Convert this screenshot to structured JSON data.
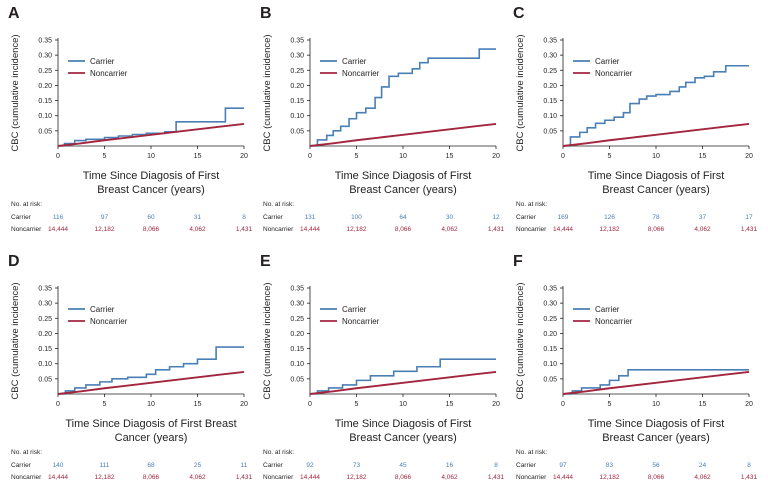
{
  "colors": {
    "carrier": "#4a7fb5",
    "noncarrier": "#a3263f",
    "axis": "#231f20"
  },
  "risk_table": {
    "title": "No. at risk:",
    "carrier_label": "Carrier",
    "noncarrier_label": "Noncarrier",
    "times": [
      "0",
      "5",
      "10",
      "15",
      "20"
    ]
  },
  "chart_data": [
    {
      "panel": "A",
      "type": "line",
      "xlabel": "Time Since Diagosis of First Breast Cancer (years)",
      "xlabel_lines": [
        "Time Since Diagosis of First",
        "Breast Cancer (years)"
      ],
      "ylabel": "CBC (cumulative incidence)",
      "xlim": [
        0,
        20
      ],
      "ylim": [
        0,
        0.35
      ],
      "xticks": [
        "0",
        "5",
        "10",
        "15",
        "20"
      ],
      "yticks": [
        "0.05",
        "0.10",
        "0.15",
        "0.20",
        "0.25",
        "0.30",
        "0.35"
      ],
      "legend": "top-left",
      "grid": false,
      "series": [
        {
          "name": "Carrier",
          "step": true,
          "x": [
            0,
            0.7,
            1.8,
            3,
            5,
            6.5,
            8,
            9.5,
            11.5,
            12.7,
            18,
            20
          ],
          "y": [
            0,
            0.008,
            0.018,
            0.022,
            0.028,
            0.033,
            0.038,
            0.042,
            0.047,
            0.08,
            0.125,
            0.125
          ]
        },
        {
          "name": "Noncarrier",
          "step": false,
          "x": [
            0,
            2.5,
            5,
            7.5,
            10,
            12.5,
            15,
            17.5,
            20
          ],
          "y": [
            0,
            0.009,
            0.019,
            0.028,
            0.037,
            0.046,
            0.055,
            0.064,
            0.073
          ]
        }
      ],
      "at_risk": {
        "carrier": [
          "116",
          "97",
          "60",
          "31",
          "8"
        ],
        "noncarrier": [
          "14,444",
          "12,182",
          "8,066",
          "4,062",
          "1,431"
        ]
      }
    },
    {
      "panel": "B",
      "type": "line",
      "xlabel": "Time Since Diagosis of First Breast Cancer (years)",
      "xlabel_lines": [
        "Time Since Diagosis of First",
        "Breast Cancer (years)"
      ],
      "ylabel": "CBC (cumulative incidence)",
      "xlim": [
        0,
        20
      ],
      "ylim": [
        0,
        0.35
      ],
      "xticks": [
        "0",
        "5",
        "10",
        "15",
        "20"
      ],
      "yticks": [
        "0.05",
        "0.10",
        "0.15",
        "0.20",
        "0.25",
        "0.30",
        "0.35"
      ],
      "legend": "top-left",
      "grid": false,
      "series": [
        {
          "name": "Carrier",
          "step": true,
          "x": [
            0,
            0.8,
            1.8,
            2.5,
            3.3,
            4.2,
            5,
            6,
            7,
            7.7,
            8.5,
            9.5,
            11,
            11.8,
            12.7,
            14.3,
            18.2,
            20
          ],
          "y": [
            0,
            0.02,
            0.035,
            0.05,
            0.065,
            0.09,
            0.11,
            0.125,
            0.16,
            0.195,
            0.23,
            0.24,
            0.255,
            0.275,
            0.29,
            0.29,
            0.32,
            0.32
          ]
        },
        {
          "name": "Noncarrier",
          "step": false,
          "x": [
            0,
            2.5,
            5,
            7.5,
            10,
            12.5,
            15,
            17.5,
            20
          ],
          "y": [
            0,
            0.009,
            0.019,
            0.028,
            0.037,
            0.046,
            0.055,
            0.064,
            0.073
          ]
        }
      ],
      "at_risk": {
        "carrier": [
          "131",
          "100",
          "64",
          "30",
          "12"
        ],
        "noncarrier": [
          "14,444",
          "12,182",
          "8,066",
          "4,062",
          "1,431"
        ]
      }
    },
    {
      "panel": "C",
      "type": "line",
      "xlabel": "Time Since Diagosis of First Breast Cancer (years)",
      "xlabel_lines": [
        "Time Since Diagosis of First",
        "Breast Cancer (years)"
      ],
      "ylabel": "CBC (cumulative incidence)",
      "xlim": [
        0,
        20
      ],
      "ylim": [
        0,
        0.35
      ],
      "xticks": [
        "0",
        "5",
        "10",
        "15",
        "20"
      ],
      "yticks": [
        "0.05",
        "0.10",
        "0.15",
        "0.20",
        "0.25",
        "0.30",
        "0.35"
      ],
      "legend": "top-left",
      "grid": false,
      "series": [
        {
          "name": "Carrier",
          "step": true,
          "x": [
            0,
            0.8,
            1.8,
            2.6,
            3.5,
            4.5,
            5.5,
            6.5,
            7.2,
            8.2,
            9,
            10,
            11.5,
            12.5,
            13.2,
            14.2,
            15.2,
            16.2,
            17.5,
            20
          ],
          "y": [
            0,
            0.03,
            0.045,
            0.06,
            0.075,
            0.085,
            0.095,
            0.11,
            0.14,
            0.155,
            0.165,
            0.17,
            0.18,
            0.195,
            0.21,
            0.225,
            0.23,
            0.245,
            0.265,
            0.265
          ]
        },
        {
          "name": "Noncarrier",
          "step": false,
          "x": [
            0,
            2.5,
            5,
            7.5,
            10,
            12.5,
            15,
            17.5,
            20
          ],
          "y": [
            0,
            0.009,
            0.019,
            0.028,
            0.037,
            0.046,
            0.055,
            0.064,
            0.073
          ]
        }
      ],
      "at_risk": {
        "carrier": [
          "169",
          "126",
          "78",
          "37",
          "17"
        ],
        "noncarrier": [
          "14,444",
          "12,182",
          "8,066",
          "4,062",
          "1,431"
        ]
      }
    },
    {
      "panel": "D",
      "type": "line",
      "xlabel": "Time Since Diagosis of First Breast Cancer (years)",
      "xlabel_lines": [
        "Time Since Diagosis of First Breast",
        "Cancer (years)"
      ],
      "ylabel": "CBC (cumulative incidence)",
      "xlim": [
        0,
        20
      ],
      "ylim": [
        0,
        0.35
      ],
      "xticks": [
        "0",
        "5",
        "10",
        "15",
        "20"
      ],
      "yticks": [
        "0.05",
        "0.10",
        "0.15",
        "0.20",
        "0.25",
        "0.30",
        "0.35"
      ],
      "legend": "top-left",
      "grid": false,
      "series": [
        {
          "name": "Carrier",
          "step": true,
          "x": [
            0,
            0.8,
            1.8,
            3,
            4.5,
            5.8,
            7.5,
            9.5,
            10.5,
            12,
            13.5,
            15,
            17,
            20
          ],
          "y": [
            0,
            0.01,
            0.02,
            0.03,
            0.04,
            0.05,
            0.055,
            0.065,
            0.08,
            0.09,
            0.1,
            0.115,
            0.155,
            0.155
          ]
        },
        {
          "name": "Noncarrier",
          "step": false,
          "x": [
            0,
            2.5,
            5,
            7.5,
            10,
            12.5,
            15,
            17.5,
            20
          ],
          "y": [
            0,
            0.009,
            0.019,
            0.028,
            0.037,
            0.046,
            0.055,
            0.064,
            0.073
          ]
        }
      ],
      "at_risk": {
        "carrier": [
          "140",
          "111",
          "68",
          "25",
          "11"
        ],
        "noncarrier": [
          "14,444",
          "12,182",
          "8,066",
          "4,062",
          "1,431"
        ]
      }
    },
    {
      "panel": "E",
      "type": "line",
      "xlabel": "Time Since Diagosis of First Breast Cancer (years)",
      "xlabel_lines": [
        "Time Since Diagosis of First",
        "Breast Cancer (years)"
      ],
      "ylabel": "CBC (cumulative incidence)",
      "xlim": [
        0,
        20
      ],
      "ylim": [
        0,
        0.35
      ],
      "xticks": [
        "0",
        "5",
        "10",
        "15",
        "20"
      ],
      "yticks": [
        "0.05",
        "0.10",
        "0.15",
        "0.20",
        "0.25",
        "0.30",
        "0.35"
      ],
      "legend": "top-left",
      "grid": false,
      "series": [
        {
          "name": "Carrier",
          "step": true,
          "x": [
            0,
            0.8,
            2,
            3.5,
            5,
            6.5,
            9,
            11.5,
            14,
            20
          ],
          "y": [
            0,
            0.01,
            0.02,
            0.03,
            0.045,
            0.06,
            0.075,
            0.09,
            0.115,
            0.115
          ]
        },
        {
          "name": "Noncarrier",
          "step": false,
          "x": [
            0,
            2.5,
            5,
            7.5,
            10,
            12.5,
            15,
            17.5,
            20
          ],
          "y": [
            0,
            0.009,
            0.019,
            0.028,
            0.037,
            0.046,
            0.055,
            0.064,
            0.073
          ]
        }
      ],
      "at_risk": {
        "carrier": [
          "92",
          "73",
          "45",
          "16",
          "8"
        ],
        "noncarrier": [
          "14,444",
          "12,182",
          "8,066",
          "4,062",
          "1,431"
        ]
      }
    },
    {
      "panel": "F",
      "type": "line",
      "xlabel": "Time Since Diagosis of First Breast Cancer (years)",
      "xlabel_lines": [
        "Time Since Diagosis of First",
        "Breast Cancer (years)"
      ],
      "ylabel": "CBC (cumulative incidence)",
      "xlim": [
        0,
        20
      ],
      "ylim": [
        0,
        0.35
      ],
      "xticks": [
        "0",
        "5",
        "10",
        "15",
        "20"
      ],
      "yticks": [
        "0.05",
        "0.10",
        "0.15",
        "0.20",
        "0.25",
        "0.30",
        "0.35"
      ],
      "legend": "top-left",
      "grid": false,
      "series": [
        {
          "name": "Carrier",
          "step": true,
          "x": [
            0,
            1,
            2,
            4,
            5,
            6,
            7,
            20
          ],
          "y": [
            0,
            0.01,
            0.02,
            0.03,
            0.045,
            0.06,
            0.08,
            0.08
          ]
        },
        {
          "name": "Noncarrier",
          "step": false,
          "x": [
            0,
            2.5,
            5,
            7.5,
            10,
            12.5,
            15,
            17.5,
            20
          ],
          "y": [
            0,
            0.009,
            0.019,
            0.028,
            0.037,
            0.046,
            0.055,
            0.064,
            0.073
          ]
        }
      ],
      "at_risk": {
        "carrier": [
          "97",
          "83",
          "56",
          "24",
          "8"
        ],
        "noncarrier": [
          "14,444",
          "12,182",
          "8,066",
          "4,062",
          "1,431"
        ]
      }
    }
  ]
}
